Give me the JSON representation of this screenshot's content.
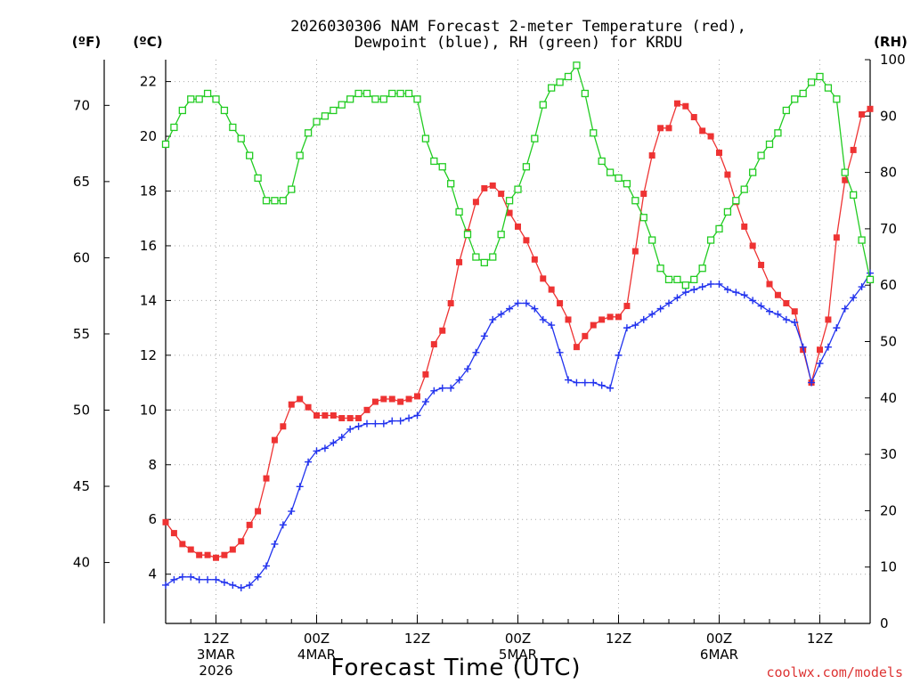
{
  "chart_data": {
    "type": "line",
    "title_lines": [
      "2026030306 NAM Forecast 2-meter Temperature (red),",
      "Dewpoint (blue), RH (green) for KRDU"
    ],
    "xlabel": "Forecast Time (UTC)",
    "credit": "coolwx.com/models",
    "units": {
      "fahrenheit": "(ºF)",
      "celsius": "(ºC)",
      "rh": "(RH)"
    },
    "x_ticks": [
      {
        "hour": 6,
        "lines": [
          "12Z",
          "3MAR",
          "2026"
        ]
      },
      {
        "hour": 18,
        "lines": [
          "00Z",
          "4MAR"
        ]
      },
      {
        "hour": 30,
        "lines": [
          "12Z"
        ]
      },
      {
        "hour": 42,
        "lines": [
          "00Z",
          "5MAR"
        ]
      },
      {
        "hour": 54,
        "lines": [
          "12Z"
        ]
      },
      {
        "hour": 66,
        "lines": [
          "00Z",
          "6MAR"
        ]
      },
      {
        "hour": 78,
        "lines": [
          "12Z"
        ]
      }
    ],
    "x_range": [
      0,
      84
    ],
    "grid": true,
    "axes": {
      "celsius": {
        "range": [
          2.2,
          22.8
        ],
        "ticks": [
          4,
          6,
          8,
          10,
          12,
          14,
          16,
          18,
          20,
          22
        ]
      },
      "fahrenheit": {
        "range": [
          36,
          73
        ],
        "ticks": [
          40,
          45,
          50,
          55,
          60,
          65,
          70
        ]
      },
      "rh": {
        "range": [
          0,
          100
        ],
        "ticks": [
          0,
          10,
          20,
          30,
          40,
          50,
          60,
          70,
          80,
          90,
          100
        ]
      }
    },
    "series": [
      {
        "name": "Temperature",
        "color": "#ee3333",
        "marker": "filled-square",
        "axis": "celsius",
        "x": [
          0,
          1,
          2,
          3,
          4,
          5,
          6,
          7,
          8,
          9,
          10,
          11,
          12,
          13,
          14,
          15,
          16,
          17,
          18,
          19,
          20,
          21,
          22,
          23,
          24,
          25,
          26,
          27,
          28,
          29,
          30,
          31,
          32,
          33,
          34,
          35,
          36,
          37,
          38,
          39,
          40,
          41,
          42,
          43,
          44,
          45,
          46,
          47,
          48,
          49,
          50,
          51,
          52,
          53,
          54,
          55,
          56,
          57,
          58,
          59,
          60,
          61,
          62,
          63,
          64,
          65,
          66,
          67,
          68,
          69,
          70,
          71,
          72,
          73,
          74,
          75,
          76,
          77,
          78,
          79,
          80,
          81,
          82,
          83,
          84
        ],
        "values": [
          5.9,
          5.5,
          5.1,
          4.9,
          4.7,
          4.7,
          4.6,
          4.7,
          4.9,
          5.2,
          5.8,
          6.3,
          7.5,
          8.9,
          9.4,
          10.2,
          10.4,
          10.1,
          9.8,
          9.8,
          9.8,
          9.7,
          9.7,
          9.7,
          10.0,
          10.3,
          10.4,
          10.4,
          10.3,
          10.4,
          10.5,
          11.3,
          12.4,
          12.9,
          13.9,
          15.4,
          16.5,
          17.6,
          18.1,
          18.2,
          17.9,
          17.2,
          16.7,
          16.2,
          15.5,
          14.8,
          14.4,
          13.9,
          13.3,
          12.3,
          12.7,
          13.1,
          13.3,
          13.4,
          13.4,
          13.8,
          15.8,
          17.9,
          19.3,
          20.3,
          20.3,
          21.2,
          21.1,
          20.7,
          20.2,
          20.0,
          19.4,
          18.6,
          17.6,
          16.7,
          16.0,
          15.3,
          14.6,
          14.2,
          13.9,
          13.6,
          12.2,
          11.0,
          12.2,
          13.3,
          16.3,
          18.4,
          19.5,
          20.8,
          21.0
        ]
      },
      {
        "name": "Dewpoint",
        "color": "#2233ee",
        "marker": "plus",
        "axis": "celsius",
        "x": [
          0,
          1,
          2,
          3,
          4,
          5,
          6,
          7,
          8,
          9,
          10,
          11,
          12,
          13,
          14,
          15,
          16,
          17,
          18,
          19,
          20,
          21,
          22,
          23,
          24,
          25,
          26,
          27,
          28,
          29,
          30,
          31,
          32,
          33,
          34,
          35,
          36,
          37,
          38,
          39,
          40,
          41,
          42,
          43,
          44,
          45,
          46,
          47,
          48,
          49,
          50,
          51,
          52,
          53,
          54,
          55,
          56,
          57,
          58,
          59,
          60,
          61,
          62,
          63,
          64,
          65,
          66,
          67,
          68,
          69,
          70,
          71,
          72,
          73,
          74,
          75,
          76,
          77,
          78,
          79,
          80,
          81,
          82,
          83,
          84
        ],
        "values": [
          3.6,
          3.8,
          3.9,
          3.9,
          3.8,
          3.8,
          3.8,
          3.7,
          3.6,
          3.5,
          3.6,
          3.9,
          4.3,
          5.1,
          5.8,
          6.3,
          7.2,
          8.1,
          8.5,
          8.6,
          8.8,
          9.0,
          9.3,
          9.4,
          9.5,
          9.5,
          9.5,
          9.6,
          9.6,
          9.7,
          9.8,
          10.3,
          10.7,
          10.8,
          10.8,
          11.1,
          11.5,
          12.1,
          12.7,
          13.3,
          13.5,
          13.7,
          13.9,
          13.9,
          13.7,
          13.3,
          13.1,
          12.1,
          11.1,
          11.0,
          11.0,
          11.0,
          10.9,
          10.8,
          12.0,
          13.0,
          13.1,
          13.3,
          13.5,
          13.7,
          13.9,
          14.1,
          14.3,
          14.4,
          14.5,
          14.6,
          14.6,
          14.4,
          14.3,
          14.2,
          14.0,
          13.8,
          13.6,
          13.5,
          13.3,
          13.2,
          12.3,
          11.0,
          11.7,
          12.3,
          13.0,
          13.7,
          14.1,
          14.5,
          15.0
        ]
      },
      {
        "name": "RH",
        "color": "#22cc22",
        "marker": "open-square",
        "axis": "rh",
        "x": [
          0,
          1,
          2,
          3,
          4,
          5,
          6,
          7,
          8,
          9,
          10,
          11,
          12,
          13,
          14,
          15,
          16,
          17,
          18,
          19,
          20,
          21,
          22,
          23,
          24,
          25,
          26,
          27,
          28,
          29,
          30,
          31,
          32,
          33,
          34,
          35,
          36,
          37,
          38,
          39,
          40,
          41,
          42,
          43,
          44,
          45,
          46,
          47,
          48,
          49,
          50,
          51,
          52,
          53,
          54,
          55,
          56,
          57,
          58,
          59,
          60,
          61,
          62,
          63,
          64,
          65,
          66,
          67,
          68,
          69,
          70,
          71,
          72,
          73,
          74,
          75,
          76,
          77,
          78,
          79,
          80,
          81,
          82,
          83,
          84
        ],
        "values": [
          85,
          88,
          91,
          93,
          93,
          94,
          93,
          91,
          88,
          86,
          83,
          79,
          75,
          75,
          75,
          77,
          83,
          87,
          89,
          90,
          91,
          92,
          93,
          94,
          94,
          93,
          93,
          94,
          94,
          94,
          93,
          86,
          82,
          81,
          78,
          73,
          69,
          65,
          64,
          65,
          69,
          75,
          77,
          81,
          86,
          92,
          95,
          96,
          97,
          99,
          94,
          87,
          82,
          80,
          79,
          78,
          75,
          72,
          68,
          63,
          61,
          61,
          60,
          61,
          63,
          68,
          70,
          73,
          75,
          77,
          80,
          83,
          85,
          87,
          91,
          93,
          94,
          96,
          97,
          95,
          93,
          80,
          76,
          68,
          61
        ]
      }
    ]
  }
}
